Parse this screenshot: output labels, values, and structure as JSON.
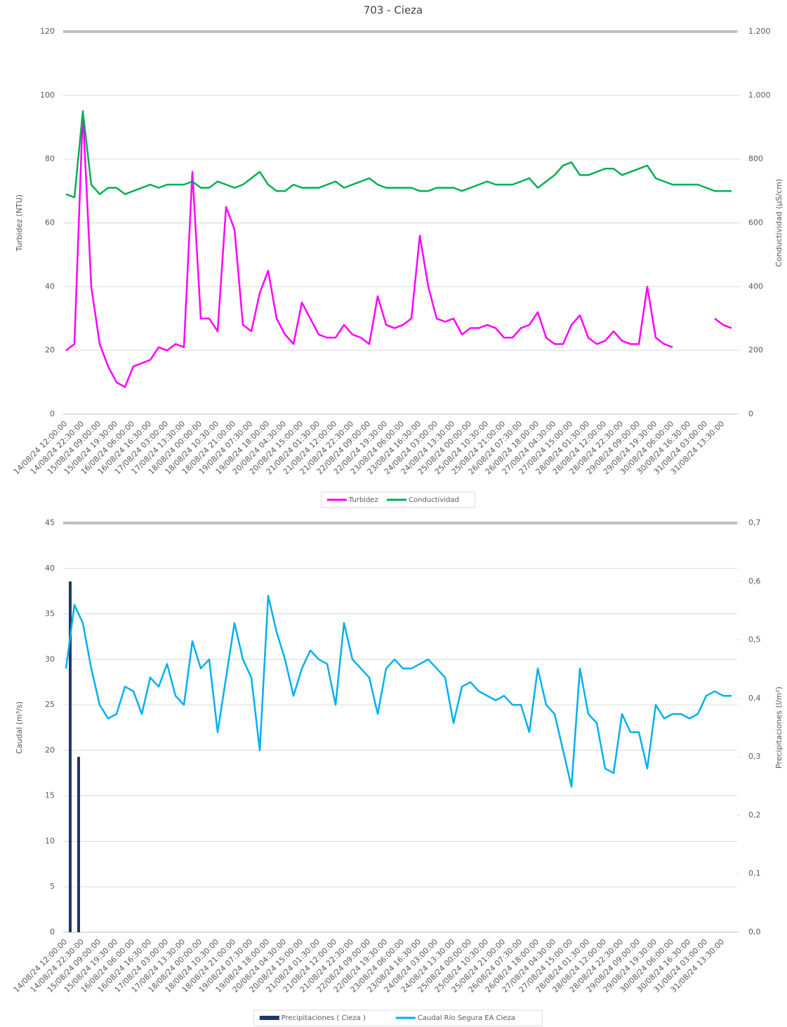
{
  "chart_data": [
    {
      "type": "line",
      "title": "703 - Cieza",
      "y_label": "Turbidez (NTU)",
      "y2_label": "Conductividad (µS/cm)",
      "grid": true,
      "legend": "bottom",
      "categories": [
        "14/08/24 12:00:00",
        null,
        "14/08/24 22:30:00",
        null,
        "15/08/24 09:00:00",
        null,
        "15/08/24 19:30:00",
        null,
        "16/08/24 06:00:00",
        null,
        "16/08/24 16:30:00",
        null,
        "17/08/24 03:00:00",
        null,
        "17/08/24 13:30:00",
        null,
        "18/08/24 00:00:00",
        null,
        "18/08/24 10:30:00",
        null,
        "18/08/24 21:00:00",
        null,
        "19/08/24 07:30:00",
        null,
        "19/08/24 18:00:00",
        null,
        "20/08/24 04:30:00",
        null,
        "20/08/24 15:00:00",
        null,
        "21/08/24 01:30:00",
        null,
        "21/08/24 12:00:00",
        null,
        "21/08/24 22:30:00",
        null,
        "22/08/24 09:00:00",
        null,
        "22/08/24 19:30:00",
        null,
        "23/08/24 06:00:00",
        null,
        "23/08/24 16:30:00",
        null,
        "24/08/24 03:00:00",
        null,
        "24/08/24 13:30:00",
        null,
        "25/08/24 00:00:00",
        null,
        "25/08/24 10:30:00",
        null,
        "25/08/24 21:00:00",
        null,
        "26/08/24 07:30:00",
        null,
        "26/08/24 18:00:00",
        null,
        "27/08/24 04:30:00",
        null,
        "27/08/24 15:00:00",
        null,
        "28/08/24 01:30:00",
        null,
        "28/08/24 12:00:00",
        null,
        "28/08/24 22:30:00",
        null,
        "29/08/24 09:00:00",
        null,
        "29/08/24 19:30:00",
        null,
        "30/08/24 06:00:00",
        null,
        "30/08/24 16:30:00",
        null,
        "31/08/24 03:00:00",
        null,
        "31/08/24 13:30:00",
        null
      ],
      "ylim": [
        0,
        120
      ],
      "yticks": [
        0,
        20,
        40,
        60,
        80,
        100,
        120
      ],
      "y2lim": [
        0,
        1200
      ],
      "y2ticks": [
        0,
        200,
        400,
        600,
        800,
        {
          "value": 1000,
          "label": "1.000"
        },
        {
          "value": 1200,
          "label": "1.200"
        }
      ],
      "series": [
        {
          "name": "Turbidez",
          "color": "#ff00ff",
          "type": "line",
          "values": [
            20,
            22,
            95,
            40,
            22,
            15,
            10,
            8.5,
            15,
            16,
            17,
            21,
            20,
            22,
            21,
            76,
            30,
            30,
            26,
            65,
            58,
            28,
            26,
            38,
            45,
            30,
            25,
            22,
            35,
            30,
            25,
            24,
            24,
            28,
            25,
            24,
            22,
            37,
            28,
            27,
            28,
            30,
            56,
            40,
            30,
            29,
            30,
            25,
            27,
            27,
            28,
            27,
            24,
            24,
            27,
            28,
            32,
            24,
            22,
            22,
            28,
            31,
            24,
            22,
            23,
            26,
            23,
            22,
            22,
            40,
            24,
            22,
            21,
            null,
            null,
            null,
            null,
            30,
            28,
            27
          ]
        },
        {
          "name": "Conductividad",
          "color": "#00b050",
          "type": "line",
          "axis": "y2",
          "values": [
            690,
            680,
            950,
            720,
            690,
            710,
            710,
            690,
            700,
            710,
            720,
            710,
            720,
            720,
            720,
            730,
            710,
            710,
            730,
            720,
            710,
            720,
            740,
            760,
            720,
            700,
            700,
            720,
            710,
            710,
            710,
            720,
            730,
            710,
            720,
            730,
            740,
            720,
            710,
            710,
            710,
            710,
            700,
            700,
            710,
            710,
            710,
            700,
            710,
            720,
            730,
            720,
            720,
            720,
            730,
            740,
            710,
            730,
            750,
            780,
            790,
            750,
            750,
            760,
            770,
            770,
            750,
            760,
            770,
            780,
            740,
            730,
            720,
            720,
            720,
            720,
            710,
            700,
            700,
            700
          ]
        }
      ]
    },
    {
      "type": "combo",
      "y_label": "Caudal (m³/s)",
      "y2_label": "Precipitaciones (l/m²)",
      "grid": true,
      "legend": "bottom",
      "categories": [
        "14/08/24 12:00:00",
        null,
        "14/08/24 22:30:00",
        null,
        "15/08/24 09:00:00",
        null,
        "15/08/24 19:30:00",
        null,
        "16/08/24 06:00:00",
        null,
        "16/08/24 16:30:00",
        null,
        "17/08/24 03:00:00",
        null,
        "17/08/24 13:30:00",
        null,
        "18/08/24 00:00:00",
        null,
        "18/08/24 10:30:00",
        null,
        "18/08/24 21:00:00",
        null,
        "19/08/24 07:30:00",
        null,
        "19/08/24 18:00:00",
        null,
        "20/08/24 04:30:00",
        null,
        "20/08/24 15:00:00",
        null,
        "21/08/24 01:30:00",
        null,
        "21/08/24 12:00:00",
        null,
        "21/08/24 22:30:00",
        null,
        "22/08/24 09:00:00",
        null,
        "22/08/24 19:30:00",
        null,
        "23/08/24 06:00:00",
        null,
        "23/08/24 16:30:00",
        null,
        "24/08/24 03:00:00",
        null,
        "24/08/24 13:30:00",
        null,
        "25/08/24 00:00:00",
        null,
        "25/08/24 10:30:00",
        null,
        "25/08/24 21:00:00",
        null,
        "26/08/24 07:30:00",
        null,
        "26/08/24 18:00:00",
        null,
        "27/08/24 04:30:00",
        null,
        "27/08/24 15:00:00",
        null,
        "28/08/24 01:30:00",
        null,
        "28/08/24 12:00:00",
        null,
        "28/08/24 22:30:00",
        null,
        "29/08/24 09:00:00",
        null,
        "29/08/24 19:30:00",
        null,
        "30/08/24 06:00:00",
        null,
        "30/08/24 16:30:00",
        null,
        "31/08/24 03:00:00",
        null,
        "31/08/24 13:30:00",
        null
      ],
      "ylim": [
        0,
        45
      ],
      "yticks": [
        0,
        5,
        10,
        15,
        20,
        25,
        30,
        35,
        40,
        45
      ],
      "y2lim": [
        0,
        0.7
      ],
      "y2ticks": [
        {
          "value": 0,
          "label": "0,0"
        },
        {
          "value": 0.1,
          "label": "0,1"
        },
        {
          "value": 0.2,
          "label": "0,2"
        },
        {
          "value": 0.3,
          "label": "0,3"
        },
        {
          "value": 0.4,
          "label": "0,4"
        },
        {
          "value": 0.5,
          "label": "0,5"
        },
        {
          "value": 0.6,
          "label": "0,6"
        },
        {
          "value": 0.7,
          "label": "0,7"
        }
      ],
      "series": [
        {
          "name": "Precipitaciones ( Cieza )",
          "color": "#1f3864",
          "type": "bar",
          "axis": "y2",
          "values": [
            0.6,
            0.3,
            0,
            0,
            0,
            0,
            0,
            0,
            0,
            0,
            0,
            0,
            0,
            0,
            0,
            0,
            0,
            0,
            0,
            0,
            0,
            0,
            0,
            0,
            0,
            0,
            0,
            0,
            0,
            0,
            0,
            0,
            0,
            0,
            0,
            0,
            0,
            0,
            0,
            0,
            0,
            0,
            0,
            0,
            0,
            0,
            0,
            0,
            0,
            0,
            0,
            0,
            0,
            0,
            0,
            0,
            0,
            0,
            0,
            0,
            0,
            0,
            0,
            0,
            0,
            0,
            0,
            0,
            0,
            0,
            0,
            0,
            0,
            0,
            0,
            0,
            0,
            0,
            0,
            0
          ]
        },
        {
          "name": "Caudal Río Segura EA Cieza",
          "color": "#00b0f0",
          "type": "line",
          "values": [
            29,
            36,
            34,
            29,
            25,
            23.5,
            24,
            27,
            26.5,
            24,
            28,
            27,
            29.5,
            26,
            25,
            32,
            29,
            30,
            22,
            28,
            34,
            30,
            28,
            20,
            37,
            33,
            30,
            26,
            29,
            31,
            30,
            29.5,
            25,
            34,
            30,
            29,
            28,
            24,
            29,
            30,
            29,
            29,
            29.5,
            30,
            29,
            28,
            23,
            27,
            27.5,
            26.5,
            26,
            25.5,
            26,
            25,
            25,
            22,
            29,
            25,
            24,
            20,
            16,
            29,
            24,
            23,
            18,
            17.5,
            24,
            22,
            22,
            18,
            25,
            23.5,
            24,
            24,
            23.5,
            24,
            26,
            26.5,
            26,
            26
          ]
        }
      ]
    }
  ]
}
